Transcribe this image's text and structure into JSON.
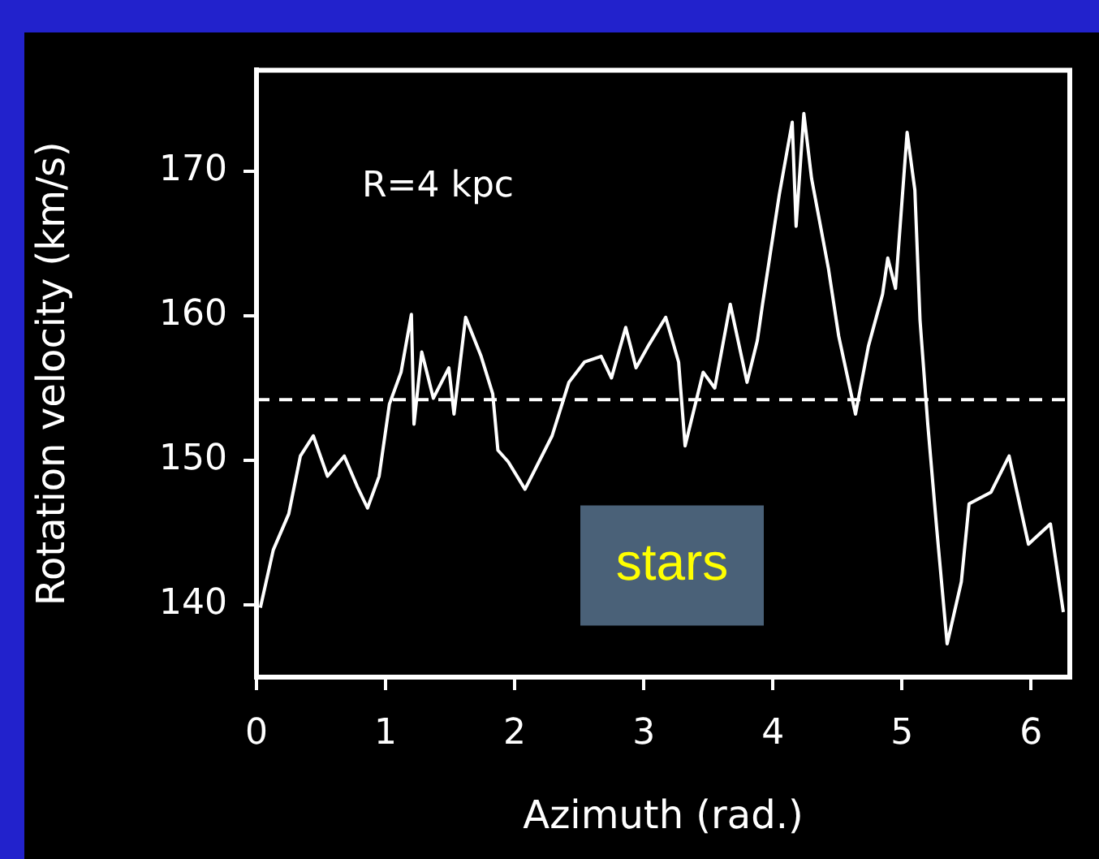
{
  "chart_data": {
    "type": "line",
    "xlabel": "Azimuth (rad.)",
    "ylabel": "Rotation velocity (km/s)",
    "annotations": [
      "R=4 kpc",
      "stars"
    ],
    "xlim": [
      0,
      6.3
    ],
    "xticks": [
      0,
      1,
      2,
      3,
      4,
      5,
      6
    ],
    "ylim": [
      135,
      177
    ],
    "yticks": [
      140,
      150,
      160,
      170
    ],
    "grid": false,
    "legend": false,
    "marker": "none",
    "line_style": "solid",
    "ref_lines": [
      {
        "axis": "y",
        "value": 154.2,
        "color": "#ffffff",
        "line_style": "dashed"
      }
    ],
    "series": [
      {
        "color": "#ffffff",
        "x": [
          0.03,
          0.13,
          0.25,
          0.34,
          0.44,
          0.55,
          0.68,
          0.78,
          0.86,
          0.95,
          1.03,
          1.12,
          1.2,
          1.22,
          1.28,
          1.37,
          1.49,
          1.53,
          1.62,
          1.74,
          1.83,
          1.87,
          1.95,
          2.08,
          2.29,
          2.42,
          2.54,
          2.67,
          2.75,
          2.86,
          2.94,
          3.04,
          3.17,
          3.27,
          3.32,
          3.46,
          3.55,
          3.67,
          3.8,
          3.88,
          3.92,
          4.05,
          4.15,
          4.18,
          4.24,
          4.3,
          4.43,
          4.51,
          4.64,
          4.74,
          4.85,
          4.89,
          4.95,
          5.04,
          5.1,
          5.14,
          5.2,
          5.27,
          5.35,
          5.46,
          5.52,
          5.69,
          5.83,
          5.98,
          6.15,
          6.25
        ],
        "values": [
          139.8,
          143.8,
          146.3,
          150.3,
          151.7,
          148.9,
          150.3,
          148.2,
          146.7,
          148.9,
          153.9,
          156.1,
          160.1,
          152.5,
          157.5,
          154.3,
          156.4,
          153.2,
          159.9,
          157.2,
          154.6,
          150.7,
          149.9,
          148.0,
          151.7,
          155.4,
          156.8,
          157.2,
          155.7,
          159.2,
          156.4,
          158.0,
          159.9,
          156.8,
          151.0,
          156.1,
          155.0,
          160.8,
          155.4,
          158.3,
          160.8,
          168.4,
          173.4,
          166.2,
          174.0,
          169.5,
          163.3,
          158.6,
          153.2,
          157.9,
          161.5,
          164.0,
          161.9,
          172.7,
          168.7,
          159.7,
          152.5,
          145.2,
          137.3,
          141.6,
          147.0,
          147.8,
          150.3,
          144.2,
          145.6,
          139.5
        ]
      }
    ]
  }
}
